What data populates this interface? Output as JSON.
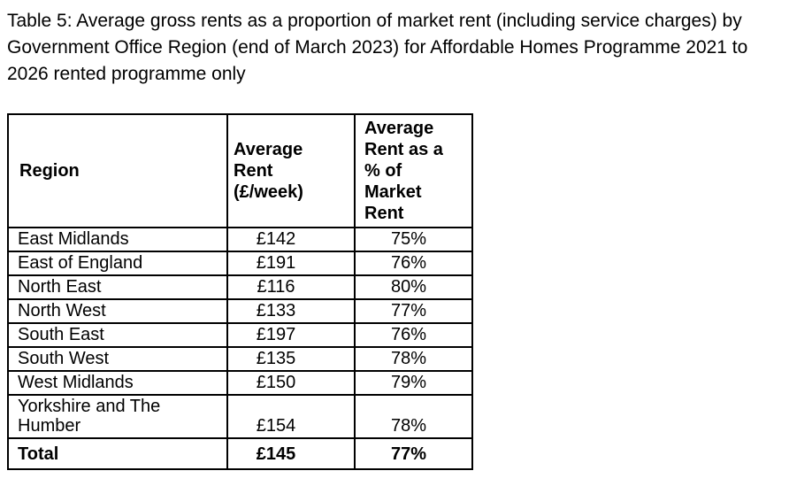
{
  "document": {
    "title": "Table 5: Average gross rents as a proportion of market rent (including service charges) by Government Office Region (end of March 2023) for Affordable Homes Programme 2021 to 2026 rented programme only"
  },
  "table": {
    "columns": {
      "region": "Region",
      "avg_rent": "Average Rent (£/week)",
      "pct_market": "Average Rent as a % of Market Rent"
    },
    "rows": [
      {
        "region": "East Midlands",
        "avg_rent": "£142",
        "pct_market": "75%"
      },
      {
        "region": "East of England",
        "avg_rent": "£191",
        "pct_market": "76%"
      },
      {
        "region": "North East",
        "avg_rent": "£116",
        "pct_market": "80%"
      },
      {
        "region": "North West",
        "avg_rent": "£133",
        "pct_market": "77%"
      },
      {
        "region": "South East",
        "avg_rent": "£197",
        "pct_market": "76%"
      },
      {
        "region": "South West",
        "avg_rent": "£135",
        "pct_market": "78%"
      },
      {
        "region": "West Midlands",
        "avg_rent": "£150",
        "pct_market": "79%"
      },
      {
        "region": "Yorkshire and The Humber",
        "avg_rent": "£154",
        "pct_market": "78%"
      }
    ],
    "total_row": {
      "region": "Total",
      "avg_rent": "£145",
      "pct_market": "77%"
    }
  },
  "colors": {
    "text": "#000000",
    "border": "#000000",
    "background": "#ffffff"
  }
}
